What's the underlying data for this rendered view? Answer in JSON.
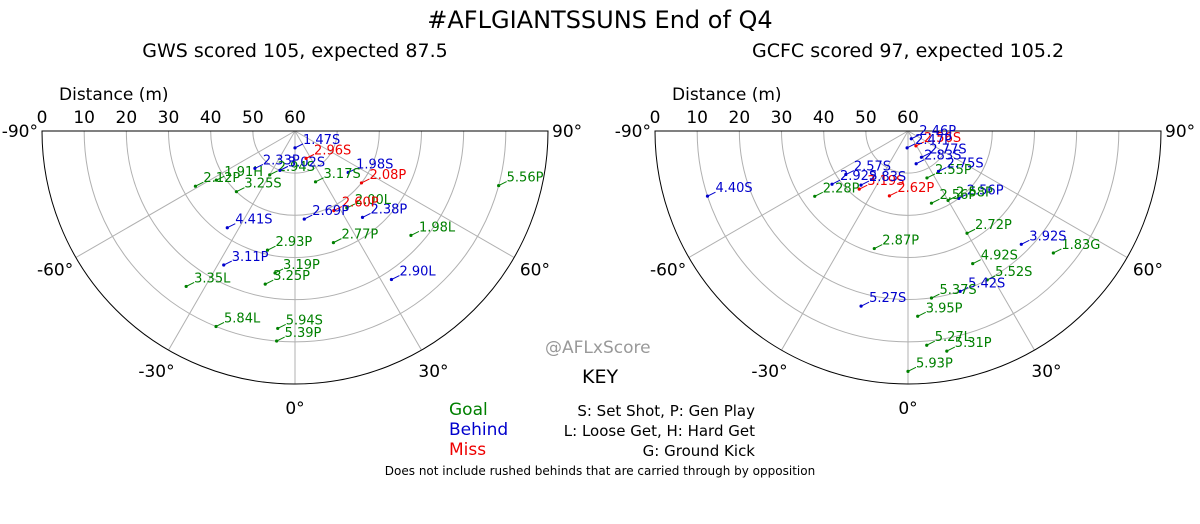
{
  "title": "#AFLGIANTSSUNS End of Q4",
  "watermark": "@AFLxScore",
  "footnote": "Does not include rushed behinds that are carried through by opposition",
  "key": {
    "title": "KEY",
    "outcomes": [
      {
        "label": "Goal",
        "color": "#008000"
      },
      {
        "label": "Behind",
        "color": "#0000cc"
      },
      {
        "label": "Miss",
        "color": "#ee0000"
      }
    ],
    "codes": [
      "S: Set Shot, P: Gen Play",
      "L: Loose Get, H: Hard Get",
      "G: Ground Kick"
    ]
  },
  "colors": {
    "goal": "#008000",
    "behind": "#0000cc",
    "miss": "#ee0000",
    "grid": "#b0b0b0",
    "axis": "#000000"
  },
  "chart_data": [
    {
      "type": "scatter",
      "coordinate_system": "polar",
      "title": "GWS scored 105, expected 87.5",
      "radial_label": "Distance (m)",
      "radial_ticks": [
        60,
        50,
        40,
        30,
        20,
        10,
        0
      ],
      "radial_range": [
        0,
        60
      ],
      "angle_ticks": [
        "-90°",
        "-60°",
        "-30°",
        "0°",
        "30°",
        "60°",
        "90°"
      ],
      "angle_range": [
        -90,
        90
      ],
      "grid": true,
      "points": [
        {
          "label": "5.84L",
          "outcome": "goal",
          "angle": -22,
          "distance": 10
        },
        {
          "label": "5.56P",
          "outcome": "goal",
          "angle": 75,
          "distance": 10
        },
        {
          "label": "5.39P",
          "outcome": "goal",
          "angle": -5,
          "distance": 10
        },
        {
          "label": "3.35L",
          "outcome": "goal",
          "angle": -35,
          "distance": 15
        },
        {
          "label": "1.98L",
          "outcome": "goal",
          "angle": 48,
          "distance": 23
        },
        {
          "label": "2.90L",
          "outcome": "behind",
          "angle": 33,
          "distance": 18
        },
        {
          "label": "5.94S",
          "outcome": "goal",
          "angle": -5,
          "distance": 13
        },
        {
          "label": "1.91H",
          "outcome": "goal",
          "angle": -58,
          "distance": 38
        },
        {
          "label": "2.12P",
          "outcome": "goal",
          "angle": -61,
          "distance": 33
        },
        {
          "label": "3.11P",
          "outcome": "behind",
          "angle": -28,
          "distance": 24
        },
        {
          "label": "2.08P",
          "outcome": "miss",
          "angle": 52,
          "distance": 40
        },
        {
          "label": "3.25P",
          "outcome": "goal",
          "angle": -11,
          "distance": 23
        },
        {
          "label": "4.41S",
          "outcome": "behind",
          "angle": -35,
          "distance": 32
        },
        {
          "label": "3.19P",
          "outcome": "goal",
          "angle": -8,
          "distance": 26
        },
        {
          "label": "2.38P",
          "outcome": "behind",
          "angle": 38,
          "distance": 34
        },
        {
          "label": "3.25S",
          "outcome": "goal",
          "angle": -44,
          "distance": 40
        },
        {
          "label": "2.93P",
          "outcome": "goal",
          "angle": -13,
          "distance": 31
        },
        {
          "label": "2.77P",
          "outcome": "goal",
          "angle": 19,
          "distance": 32
        },
        {
          "label": "2.00L",
          "outcome": "goal",
          "angle": 34,
          "distance": 38
        },
        {
          "label": "1.98S",
          "outcome": "behind",
          "angle": 52,
          "distance": 44
        },
        {
          "label": "2.33P",
          "outcome": "behind",
          "angle": -47,
          "distance": 47
        },
        {
          "label": "2.60P",
          "outcome": "miss",
          "angle": 26,
          "distance": 39
        },
        {
          "label": "2.69P",
          "outcome": "behind",
          "angle": 6,
          "distance": 39
        },
        {
          "label": "2.94S",
          "outcome": "goal",
          "angle": -30,
          "distance": 48
        },
        {
          "label": "3.17S",
          "outcome": "goal",
          "angle": 22,
          "distance": 47
        },
        {
          "label": "3.02S",
          "outcome": "behind",
          "angle": -21,
          "distance": 50
        },
        {
          "label": "2.96S",
          "outcome": "miss",
          "angle": 22,
          "distance": 53
        },
        {
          "label": "1.47S",
          "outcome": "behind",
          "angle": 0,
          "distance": 56
        }
      ]
    },
    {
      "type": "scatter",
      "coordinate_system": "polar",
      "title": "GCFC scored 97, expected 105.2",
      "radial_label": "Distance (m)",
      "radial_ticks": [
        60,
        50,
        40,
        30,
        20,
        10,
        0
      ],
      "radial_range": [
        0,
        60
      ],
      "angle_ticks": [
        "-90°",
        "-60°",
        "-30°",
        "0°",
        "30°",
        "60°",
        "90°"
      ],
      "angle_range": [
        -90,
        90
      ],
      "grid": true,
      "points": [
        {
          "label": "5.93P",
          "outcome": "goal",
          "angle": 0,
          "distance": 3
        },
        {
          "label": "4.40S",
          "outcome": "behind",
          "angle": -72,
          "distance": 10
        },
        {
          "label": "5.31P",
          "outcome": "goal",
          "angle": 10,
          "distance": 7
        },
        {
          "label": "1.83G",
          "outcome": "goal",
          "angle": 50,
          "distance": 15
        },
        {
          "label": "5.27L",
          "outcome": "goal",
          "angle": 5,
          "distance": 9
        },
        {
          "label": "3.92S",
          "outcome": "behind",
          "angle": 45,
          "distance": 22
        },
        {
          "label": "3.95P",
          "outcome": "goal",
          "angle": 3,
          "distance": 16
        },
        {
          "label": "5.52S",
          "outcome": "goal",
          "angle": 28,
          "distance": 20
        },
        {
          "label": "5.27S",
          "outcome": "behind",
          "angle": -15,
          "distance": 17
        },
        {
          "label": "2.28P",
          "outcome": "goal",
          "angle": -55,
          "distance": 33
        },
        {
          "label": "5.42S",
          "outcome": "behind",
          "angle": 18,
          "distance": 20
        },
        {
          "label": "5.37S",
          "outcome": "goal",
          "angle": 8,
          "distance": 20
        },
        {
          "label": "2.92S",
          "outcome": "behind",
          "angle": -55,
          "distance": 38
        },
        {
          "label": "4.92S",
          "outcome": "goal",
          "angle": 26,
          "distance": 25
        },
        {
          "label": "2.57S",
          "outcome": "behind",
          "angle": -55,
          "distance": 42
        },
        {
          "label": "2.72P",
          "outcome": "goal",
          "angle": 30,
          "distance": 32
        },
        {
          "label": "2.87P",
          "outcome": "goal",
          "angle": -16,
          "distance": 31
        },
        {
          "label": "2.56P",
          "outcome": "behind",
          "angle": 37,
          "distance": 40
        },
        {
          "label": "3.19S",
          "outcome": "miss",
          "angle": -40,
          "distance": 42
        },
        {
          "label": "2.58P",
          "outcome": "goal",
          "angle": 30,
          "distance": 41
        },
        {
          "label": "2.56P",
          "outcome": "goal",
          "angle": 18,
          "distance": 42
        },
        {
          "label": "2.83S",
          "outcome": "behind",
          "angle": -41,
          "distance": 43
        },
        {
          "label": "2.55P",
          "outcome": "goal",
          "angle": 22,
          "distance": 48
        },
        {
          "label": "2.75S",
          "outcome": "behind",
          "angle": 37,
          "distance": 48
        },
        {
          "label": "2.62P",
          "outcome": "miss",
          "angle": -16,
          "distance": 44
        },
        {
          "label": "2.77S",
          "outcome": "behind",
          "angle": 27,
          "distance": 53
        },
        {
          "label": "2.83S",
          "outcome": "behind",
          "angle": 14,
          "distance": 52
        },
        {
          "label": "2.56S",
          "outcome": "miss",
          "angle": 28,
          "distance": 56
        },
        {
          "label": "2.47P",
          "outcome": "behind",
          "angle": -3,
          "distance": 56
        },
        {
          "label": "2.46P",
          "outcome": "behind",
          "angle": 23,
          "distance": 58
        }
      ]
    }
  ]
}
